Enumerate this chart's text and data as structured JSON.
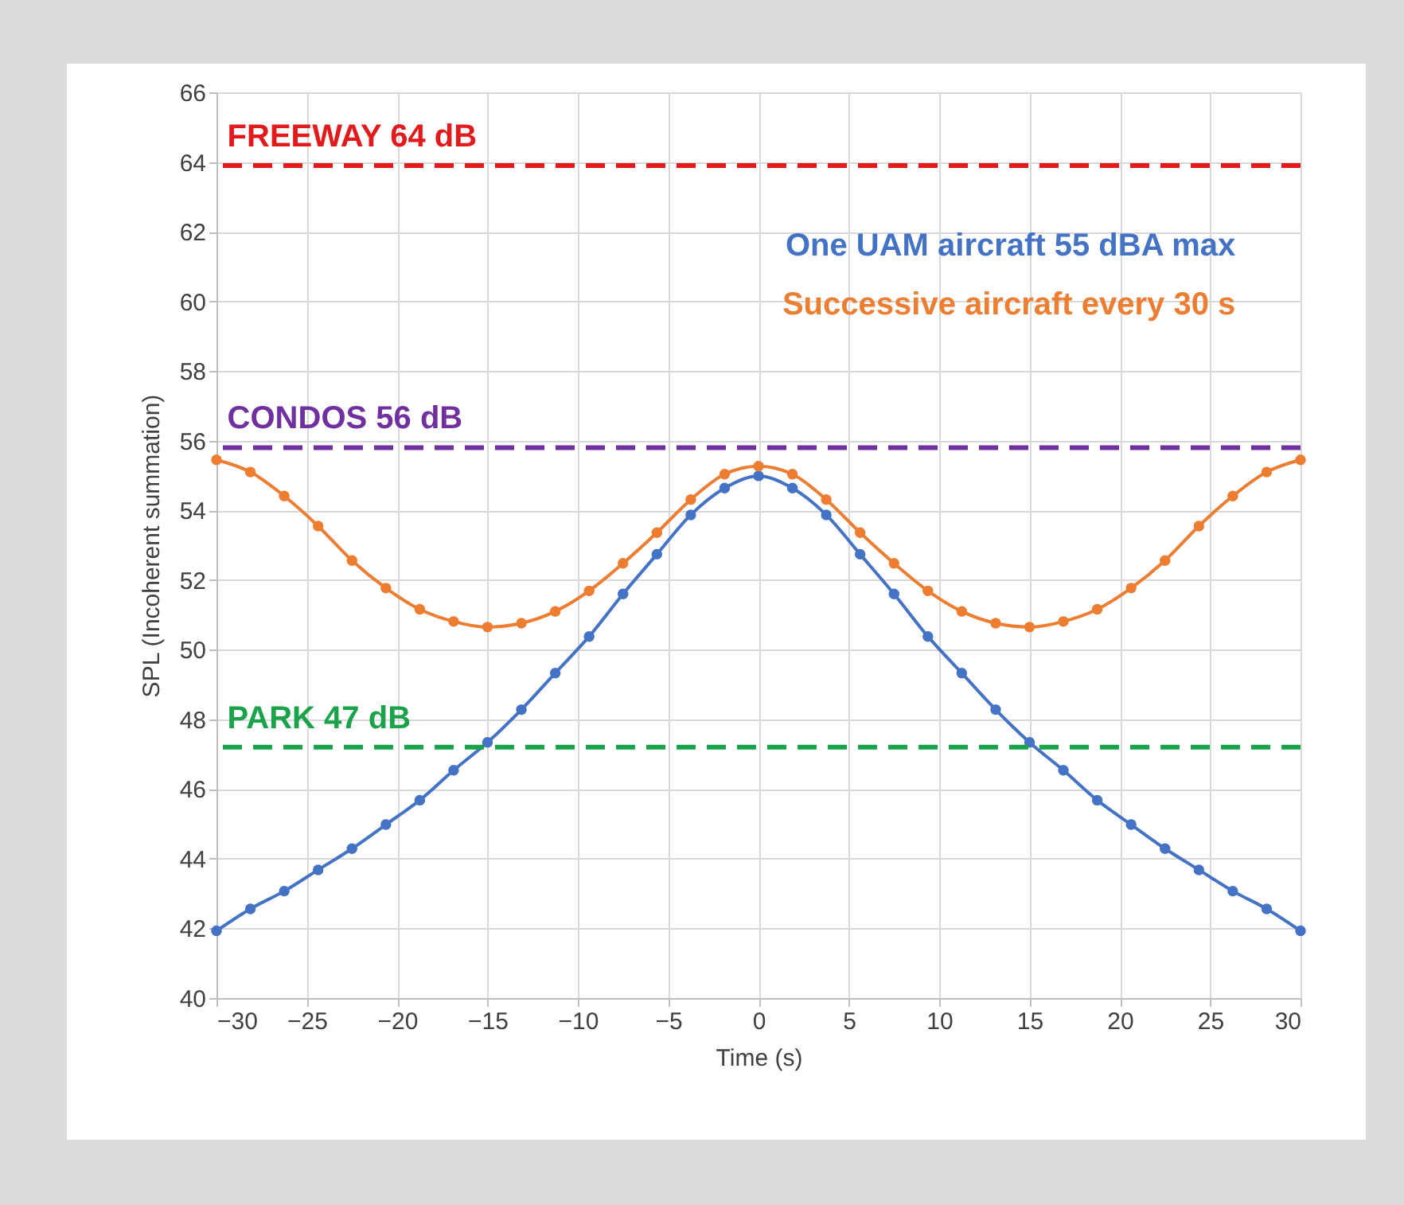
{
  "chart_data": {
    "type": "line",
    "xlabel": "Time (s)",
    "ylabel": "SPL (Incoherent summation)",
    "x": [
      -30,
      -28.125,
      -26.25,
      -24.375,
      -22.5,
      -20.625,
      -18.75,
      -16.875,
      -15,
      -13.125,
      -11.25,
      -9.375,
      -7.5,
      -5.625,
      -3.75,
      -1.875,
      0,
      1.875,
      3.75,
      5.625,
      7.5,
      9.375,
      11.25,
      13.125,
      15,
      16.875,
      18.75,
      20.625,
      22.5,
      24.375,
      26.25,
      28.125,
      30
    ],
    "series": [
      {
        "name": "One UAM aircraft 55 dBA max",
        "color": "#4472c4",
        "values": [
          41.93,
          42.56,
          43.07,
          43.68,
          44.29,
          44.98,
          45.68,
          46.54,
          47.34,
          48.28,
          49.33,
          50.38,
          51.6,
          52.74,
          53.87,
          54.64,
          54.99,
          54.64,
          53.87,
          52.74,
          51.6,
          50.38,
          49.33,
          48.28,
          47.34,
          46.54,
          45.68,
          44.98,
          44.29,
          43.68,
          43.07,
          42.56,
          41.93
        ]
      },
      {
        "name": "Successive aircraft every 30 s",
        "color": "#ed7d31",
        "values": [
          55.45,
          55.1,
          54.41,
          53.55,
          52.56,
          51.77,
          51.16,
          50.81,
          50.65,
          50.76,
          51.1,
          51.69,
          52.48,
          53.36,
          54.31,
          55.04,
          55.27,
          55.04,
          54.31,
          53.36,
          52.48,
          51.69,
          51.1,
          50.76,
          50.65,
          50.81,
          51.16,
          51.77,
          52.56,
          53.55,
          54.41,
          55.1,
          55.45
        ]
      }
    ],
    "xlim": [
      -30,
      30
    ],
    "xticks": [
      -30,
      -25,
      -20,
      -15,
      -10,
      -5,
      0,
      5,
      10,
      15,
      20,
      25,
      30
    ],
    "ylim": [
      40,
      66
    ],
    "yticks": [
      40,
      42,
      44,
      46,
      48,
      50,
      52,
      54,
      56,
      58,
      60,
      62,
      64,
      66
    ],
    "ref_lines": [
      {
        "axis": "y",
        "value": 63.9,
        "label": "FREEWAY 64 dB",
        "color": "#e31a1c",
        "line_style": "dashed"
      },
      {
        "axis": "y",
        "value": 55.8,
        "label": "CONDOS 56 dB",
        "color": "#7030a0",
        "line_style": "dashed"
      },
      {
        "axis": "y",
        "value": 47.2,
        "label": "PARK 47 dB",
        "color": "#1aa34a",
        "line_style": "dashed"
      }
    ],
    "grid": true,
    "legend": "top right",
    "marker": "circle",
    "line_style": "solid"
  }
}
